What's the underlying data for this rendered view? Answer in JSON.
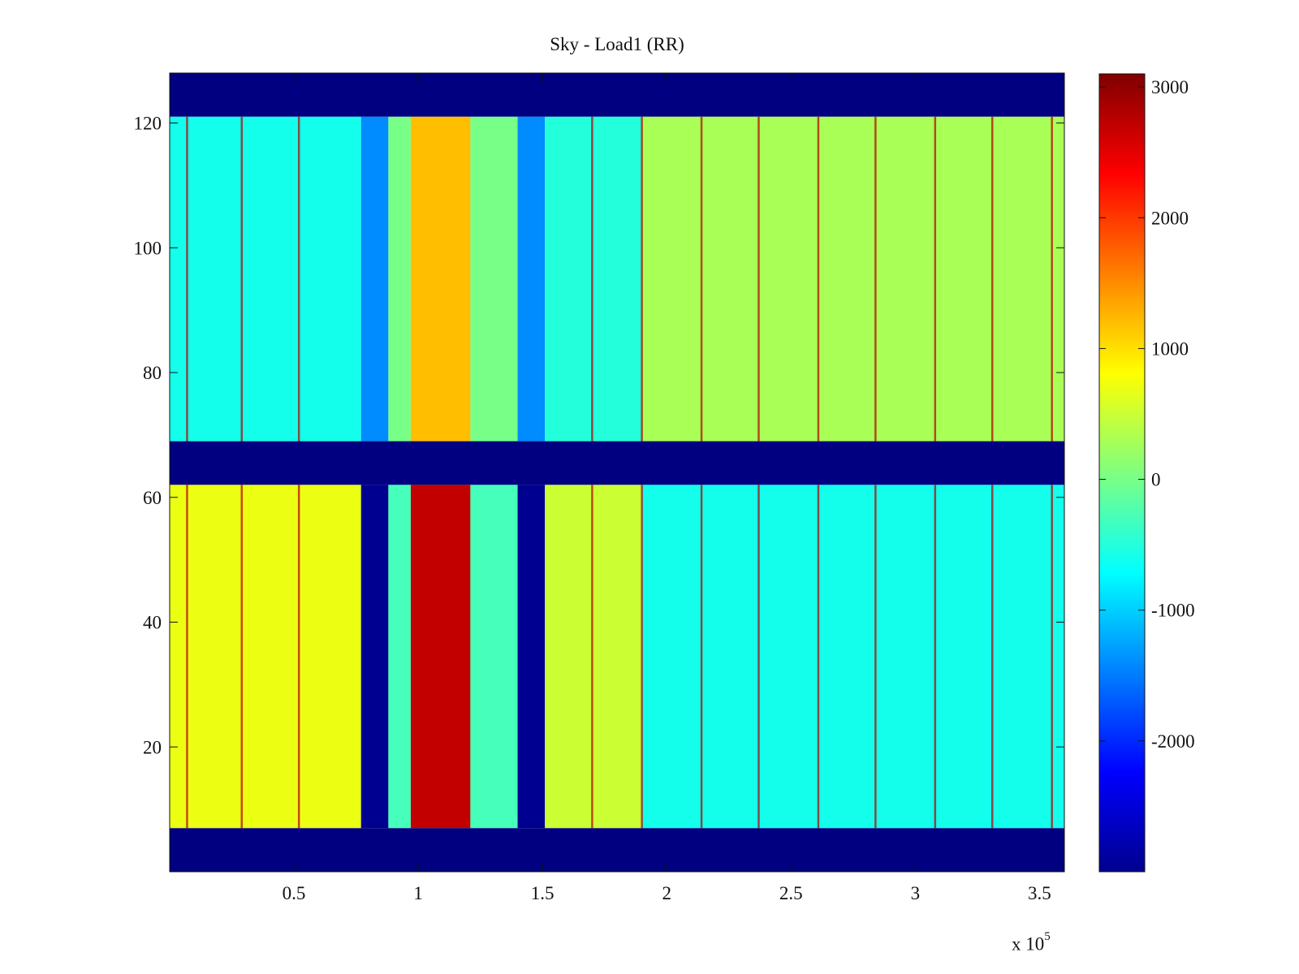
{
  "chart_data": {
    "type": "heatmap",
    "title": "Sky - Load1 (RR)",
    "xlabel": "",
    "ylabel": "",
    "x_scale_label": "x 10",
    "x_scale_exponent": "5",
    "xlim": [
      0,
      360000
    ],
    "ylim": [
      0,
      128
    ],
    "x_ticks": [
      50000,
      100000,
      150000,
      200000,
      250000,
      300000,
      350000
    ],
    "x_tick_labels": [
      "0.5",
      "1",
      "1.5",
      "2",
      "2.5",
      "3",
      "3.5"
    ],
    "y_ticks": [
      20,
      40,
      60,
      80,
      100,
      120
    ],
    "y_tick_labels": [
      "20",
      "40",
      "60",
      "80",
      "100",
      "120"
    ],
    "colorbar": {
      "range": [
        -3000,
        3100
      ],
      "ticks": [
        -2000,
        -1000,
        0,
        1000,
        2000,
        3000
      ],
      "tick_labels": [
        "-2000",
        "-1000",
        "0",
        "1000",
        "2000",
        "3000"
      ],
      "colormap": "jet"
    },
    "masked_value": -3000,
    "masked_row_bands": [
      [
        0,
        7
      ],
      [
        62,
        69
      ],
      [
        121,
        128
      ]
    ],
    "upper_block": {
      "rows": [
        69,
        121
      ],
      "base_value": 0,
      "x_segments": [
        {
          "x": [
            0,
            77000
          ],
          "value": -600
        },
        {
          "x": [
            77000,
            88000
          ],
          "value": -1400
        },
        {
          "x": [
            88000,
            97000
          ],
          "value": 0
        },
        {
          "x": [
            97000,
            121000
          ],
          "value": 1200
        },
        {
          "x": [
            121000,
            140000
          ],
          "value": 0
        },
        {
          "x": [
            140000,
            151000
          ],
          "value": -1400
        },
        {
          "x": [
            151000,
            190000
          ],
          "value": -500
        },
        {
          "x": [
            190000,
            360000
          ],
          "value": 300
        }
      ]
    },
    "lower_block": {
      "rows": [
        7,
        62
      ],
      "x_segments": [
        {
          "x": [
            0,
            77000
          ],
          "value": 700
        },
        {
          "x": [
            77000,
            88000
          ],
          "value": -2900
        },
        {
          "x": [
            88000,
            97000
          ],
          "value": -300
        },
        {
          "x": [
            97000,
            121000
          ],
          "value": 2700
        },
        {
          "x": [
            121000,
            140000
          ],
          "value": -300
        },
        {
          "x": [
            140000,
            151000
          ],
          "value": -2900
        },
        {
          "x": [
            151000,
            190000
          ],
          "value": 500
        },
        {
          "x": [
            190000,
            360000
          ],
          "value": -600
        }
      ]
    },
    "vertical_spike_lines_x": [
      7000,
      29000,
      52000,
      170000,
      190000,
      214000,
      237000,
      261000,
      284000,
      308000,
      331000,
      355000
    ],
    "spike_value": 2800
  },
  "colors": {
    "background": "#ffffff",
    "axis": "#111111"
  }
}
